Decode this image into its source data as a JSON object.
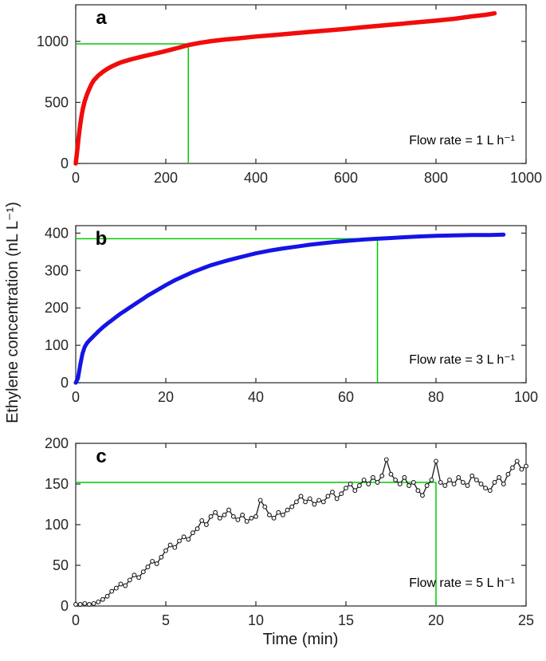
{
  "figure": {
    "ylabel": "Ethylene concentration (nL L⁻¹)",
    "xlabel": "Time (min)",
    "background": "#ffffff",
    "axis_color": "#262626",
    "guide_color": "#00cc00"
  },
  "chart_data": [
    {
      "id": "a",
      "type": "line",
      "panel_label": "a",
      "annotation": "Flow rate = 1 L h⁻¹",
      "xlabel": "Time (min)",
      "ylabel": "Ethylene concentration (nL L⁻¹)",
      "xlim": [
        0,
        1000
      ],
      "ylim": [
        0,
        1300
      ],
      "xticks": [
        0,
        200,
        400,
        600,
        800,
        1000
      ],
      "yticks": [
        0,
        500,
        1000
      ],
      "guide": {
        "x": 250,
        "y": 980
      },
      "line_width": 5.5,
      "markers": false,
      "series": [
        {
          "name": "ethylene-1Lh",
          "color": "#f10c0c",
          "x": [
            0,
            2,
            4,
            6,
            8,
            10,
            13,
            16,
            20,
            25,
            30,
            35,
            40,
            50,
            60,
            70,
            80,
            90,
            100,
            115,
            130,
            150,
            170,
            190,
            210,
            230,
            250,
            275,
            300,
            330,
            360,
            400,
            440,
            480,
            520,
            560,
            600,
            640,
            680,
            720,
            760,
            800,
            840,
            880,
            910,
            930
          ],
          "y": [
            0,
            60,
            130,
            200,
            260,
            320,
            390,
            450,
            510,
            565,
            610,
            650,
            680,
            720,
            750,
            775,
            795,
            812,
            828,
            845,
            860,
            878,
            895,
            912,
            930,
            950,
            970,
            988,
            1002,
            1015,
            1025,
            1040,
            1052,
            1065,
            1078,
            1090,
            1103,
            1117,
            1130,
            1143,
            1157,
            1170,
            1185,
            1205,
            1218,
            1230
          ]
        }
      ]
    },
    {
      "id": "b",
      "type": "line",
      "panel_label": "b",
      "annotation": "Flow rate = 3 L h⁻¹",
      "xlabel": "Time (min)",
      "ylabel": "Ethylene concentration (nL L⁻¹)",
      "xlim": [
        0,
        100
      ],
      "ylim": [
        0,
        420
      ],
      "xticks": [
        0,
        20,
        40,
        60,
        80,
        100
      ],
      "yticks": [
        0,
        100,
        200,
        300,
        400
      ],
      "guide": {
        "x": 67,
        "y": 385
      },
      "line_width": 5,
      "markers": false,
      "series": [
        {
          "name": "ethylene-3Lh",
          "color": "#1414e6",
          "x": [
            0,
            0.5,
            1,
            1.5,
            2,
            2.5,
            3,
            3.5,
            4,
            4.5,
            5,
            6,
            7,
            8,
            9,
            10,
            11,
            12,
            13,
            14,
            15,
            16,
            17,
            18,
            19,
            20,
            22,
            24,
            26,
            28,
            30,
            32,
            34,
            36,
            38,
            40,
            43,
            46,
            49,
            52,
            55,
            58,
            61,
            64,
            67,
            70,
            73,
            76,
            80,
            84,
            88,
            92,
            95
          ],
          "y": [
            0,
            12,
            48,
            78,
            96,
            106,
            113,
            119,
            125,
            131,
            137,
            148,
            158,
            167,
            176,
            185,
            193,
            201,
            209,
            217,
            225,
            233,
            240,
            247,
            254,
            261,
            274,
            285,
            296,
            305,
            314,
            321,
            328,
            334,
            340,
            346,
            353,
            359,
            364,
            369,
            373,
            377,
            380,
            383,
            385,
            387,
            389,
            391,
            393,
            394,
            395,
            395,
            396
          ]
        }
      ]
    },
    {
      "id": "c",
      "type": "line",
      "panel_label": "c",
      "annotation": "Flow rate = 5 L h⁻¹",
      "xlabel": "Time (min)",
      "ylabel": "Ethylene concentration (nL L⁻¹)",
      "xlim": [
        0,
        25
      ],
      "ylim": [
        0,
        200
      ],
      "xticks": [
        0,
        5,
        10,
        15,
        20,
        25
      ],
      "yticks": [
        0,
        50,
        100,
        150,
        200
      ],
      "guide": {
        "x": 20,
        "y": 152
      },
      "line_width": 1.3,
      "markers": true,
      "series": [
        {
          "name": "ethylene-5Lh",
          "color": "#1a1a1a",
          "x": [
            0,
            0.25,
            0.5,
            0.75,
            1,
            1.25,
            1.5,
            1.75,
            2,
            2.25,
            2.5,
            2.75,
            3,
            3.25,
            3.5,
            3.75,
            4,
            4.25,
            4.5,
            4.75,
            5,
            5.25,
            5.5,
            5.75,
            6,
            6.25,
            6.5,
            6.75,
            7,
            7.25,
            7.5,
            7.75,
            8,
            8.25,
            8.5,
            8.75,
            9,
            9.25,
            9.5,
            9.75,
            10,
            10.25,
            10.5,
            10.75,
            11,
            11.25,
            11.5,
            11.75,
            12,
            12.25,
            12.5,
            12.75,
            13,
            13.25,
            13.5,
            13.75,
            14,
            14.25,
            14.5,
            14.75,
            15,
            15.25,
            15.5,
            15.75,
            16,
            16.25,
            16.5,
            16.75,
            17,
            17.25,
            17.5,
            17.75,
            18,
            18.25,
            18.5,
            18.75,
            19,
            19.25,
            19.5,
            19.75,
            20,
            20.25,
            20.5,
            20.75,
            21,
            21.25,
            21.5,
            21.75,
            22,
            22.25,
            22.5,
            22.75,
            23,
            23.25,
            23.5,
            23.75,
            24,
            24.25,
            24.5,
            24.75,
            25
          ],
          "y": [
            2,
            2,
            3,
            2,
            3,
            5,
            8,
            12,
            18,
            22,
            27,
            25,
            32,
            38,
            35,
            42,
            48,
            55,
            52,
            60,
            68,
            75,
            72,
            80,
            85,
            82,
            90,
            95,
            105,
            100,
            110,
            115,
            108,
            112,
            118,
            110,
            106,
            112,
            104,
            108,
            110,
            130,
            122,
            112,
            108,
            115,
            112,
            118,
            122,
            128,
            135,
            128,
            132,
            125,
            130,
            128,
            135,
            140,
            132,
            138,
            145,
            150,
            142,
            148,
            155,
            150,
            158,
            152,
            160,
            180,
            162,
            155,
            150,
            158,
            148,
            152,
            142,
            136,
            148,
            155,
            178,
            152,
            148,
            155,
            150,
            158,
            152,
            148,
            160,
            155,
            150,
            145,
            142,
            152,
            158,
            150,
            162,
            170,
            178,
            168,
            172
          ]
        }
      ]
    }
  ]
}
